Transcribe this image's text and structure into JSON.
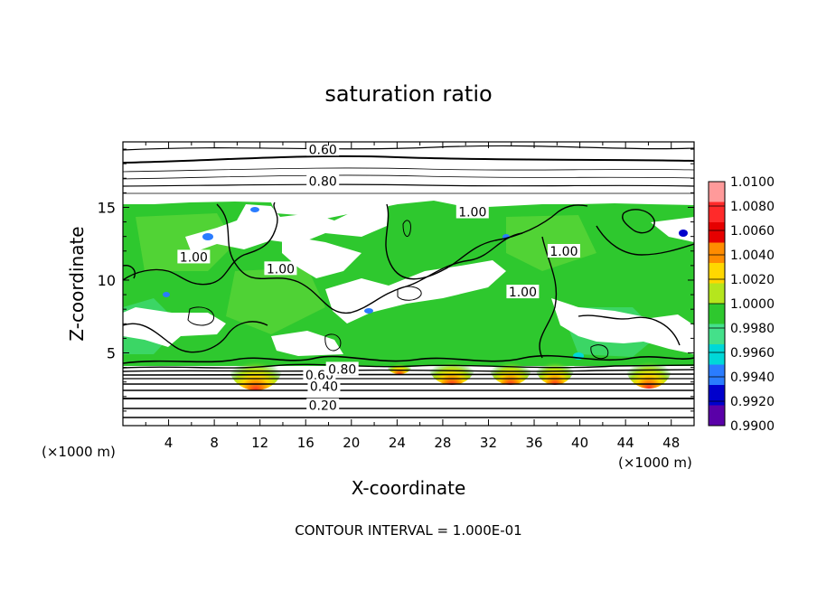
{
  "chart_data": {
    "type": "heatmap",
    "title": "saturation ratio",
    "xlabel": "X-coordinate",
    "ylabel": "Z-coordinate",
    "x_unit_left": "(×1000 m)",
    "x_unit_right": "(×1000 m)",
    "xlim": [
      0,
      50
    ],
    "ylim": [
      0,
      19.5
    ],
    "x_ticks": [
      4,
      8,
      12,
      16,
      20,
      24,
      28,
      32,
      36,
      40,
      44,
      48
    ],
    "x_tick_labels": [
      "4",
      "8",
      "12",
      "16",
      "20",
      "24",
      "28",
      "32",
      "36",
      "40",
      "44",
      "48"
    ],
    "y_ticks": [
      5,
      10,
      15
    ],
    "y_tick_labels": [
      "5",
      "10",
      "15"
    ],
    "footer": "CONTOUR INTERVAL = 1.000E-01",
    "colorbar": {
      "labels": [
        "1.0100",
        "1.0080",
        "1.0060",
        "1.0040",
        "1.0020",
        "1.0000",
        "0.9980",
        "0.9960",
        "0.9940",
        "0.9920",
        "0.9900"
      ],
      "colors": [
        "#ff9a9a",
        "#ff2a2a",
        "#e60000",
        "#ff8c00",
        "#ffd700",
        "#b5e61d",
        "#2ec82e",
        "#44e08a",
        "#00d8d8",
        "#2a7cff",
        "#0000cc",
        "#5a00a8"
      ]
    },
    "contour_labels": [
      {
        "text": "0.60",
        "x": 17.5,
        "y": 18.8
      },
      {
        "text": "0.80",
        "x": 17.5,
        "y": 16.6
      },
      {
        "text": "1.00",
        "x": 30.6,
        "y": 14.5
      },
      {
        "text": "1.00",
        "x": 6.2,
        "y": 11.4
      },
      {
        "text": "1.00",
        "x": 13.8,
        "y": 10.6
      },
      {
        "text": "1.00",
        "x": 35.0,
        "y": 9.0
      },
      {
        "text": "1.00",
        "x": 38.6,
        "y": 11.8
      },
      {
        "text": "0.60",
        "x": 17.2,
        "y": 3.3
      },
      {
        "text": "0.80",
        "x": 19.2,
        "y": 3.7
      },
      {
        "text": "0.40",
        "x": 17.6,
        "y": 2.5
      },
      {
        "text": "0.20",
        "x": 17.5,
        "y": 1.2
      }
    ]
  }
}
